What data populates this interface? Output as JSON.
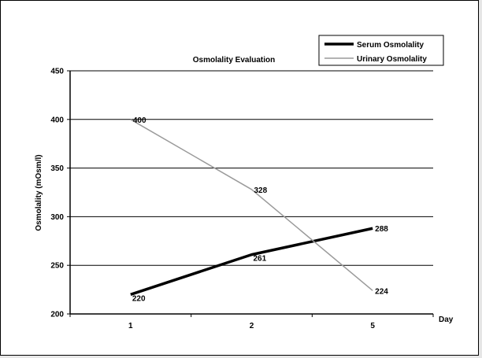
{
  "chart_data": {
    "type": "line",
    "title": "Osmolality Evaluation",
    "xlabel": "Day",
    "ylabel": "Osmolality (mOsm/l)",
    "categories": [
      "1",
      "2",
      "5"
    ],
    "ylim": [
      200,
      450
    ],
    "yticks": [
      "200",
      "250",
      "300",
      "350",
      "400",
      "450"
    ],
    "grid": "horizontal",
    "legend_position": "top-right",
    "series": [
      {
        "name": "Serum Osmolality",
        "values": [
          220,
          261,
          288
        ],
        "labels": [
          "220",
          "261",
          "288"
        ],
        "color": "#000000"
      },
      {
        "name": "Urinary Osmolality",
        "values": [
          400,
          328,
          224
        ],
        "labels": [
          "400",
          "328",
          "224"
        ],
        "color": "#9a9a9a"
      }
    ]
  }
}
